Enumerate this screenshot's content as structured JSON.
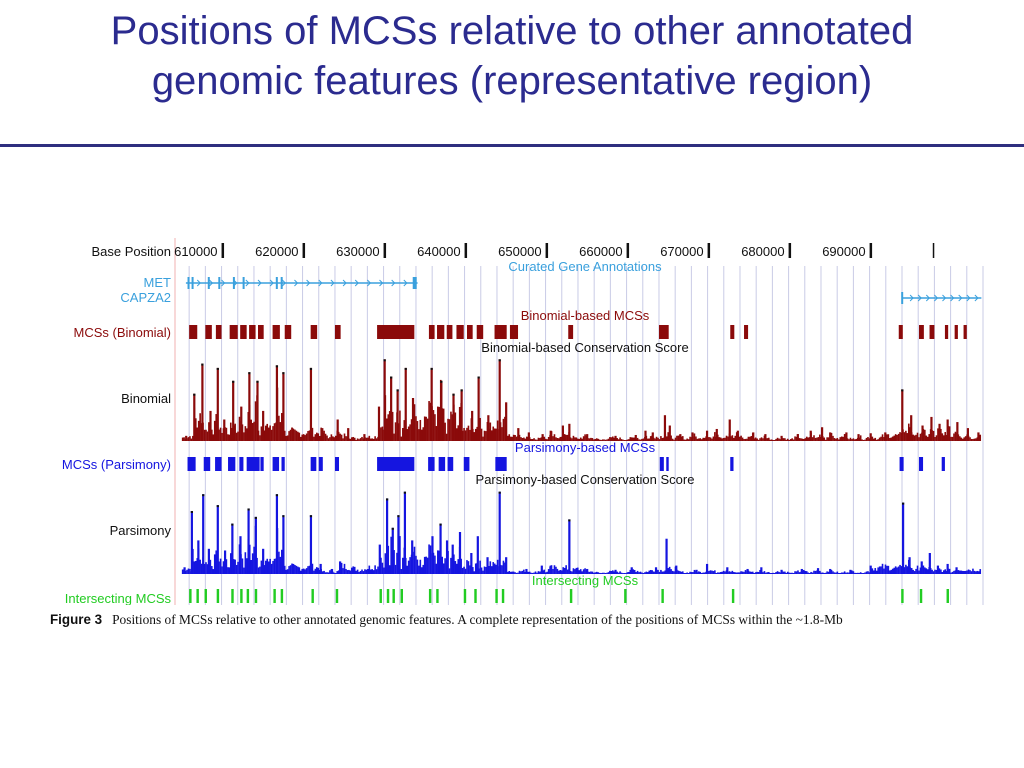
{
  "slide": {
    "title_line1": "Positions of MCSs relative to other annotated",
    "title_line2": "genomic features (representative region)"
  },
  "figure": {
    "caption_label": "Figure 3",
    "caption_text": "Positions of MCSs relative to other annotated genomic features. A complete representation of the positions of MCSs within the ~1.8-Mb",
    "colors": {
      "gene": "#3aa0dd",
      "binomial": "#8b0a0a",
      "parsimony": "#1515e0",
      "intersect": "#22cc22",
      "grid": "#c9cbe6"
    },
    "track_labels": {
      "base_position": "Base Position",
      "met": "MET",
      "capza2": "CAPZA2",
      "mcs_binomial": "MCSs (Binomial)",
      "binomial": "Binomial",
      "mcs_parsimony": "MCSs (Parsimony)",
      "parsimony": "Parsimony",
      "intersecting": "Intersecting MCSs"
    },
    "track_titles": {
      "curated": "Curated Gene Annotations",
      "binomial_mcs": "Binomial-based MCSs",
      "binomial_score": "Binomial-based Conservation Score",
      "parsimony_mcs": "Parsimony-based MCSs",
      "parsimony_score": "Parsimony-based Conservation Score",
      "intersecting_mcs": "Intersecting MCSs"
    },
    "axis": {
      "xlim": [
        604500,
        704000
      ],
      "ticks": [
        "610000",
        "620000",
        "630000",
        "640000",
        "650000",
        "660000",
        "670000",
        "680000",
        "690000"
      ]
    },
    "binomial_mcs_blocks": [
      [
        606000,
        607000
      ],
      [
        608000,
        608800
      ],
      [
        609300,
        610000
      ],
      [
        611000,
        612000
      ],
      [
        612300,
        613100
      ],
      [
        613400,
        614200
      ],
      [
        614500,
        615200
      ],
      [
        616300,
        617200
      ],
      [
        617800,
        618600
      ],
      [
        621000,
        621800
      ],
      [
        624000,
        624700
      ],
      [
        629200,
        633800
      ],
      [
        635600,
        636300
      ],
      [
        636600,
        637500
      ],
      [
        637800,
        638500
      ],
      [
        639000,
        639900
      ],
      [
        640300,
        641000
      ],
      [
        641500,
        642300
      ],
      [
        643700,
        645200
      ],
      [
        645600,
        646600
      ],
      [
        652800,
        653400
      ],
      [
        664000,
        665200
      ],
      [
        672800,
        673300
      ],
      [
        674500,
        675000
      ],
      [
        693600,
        694100
      ],
      [
        696100,
        696700
      ],
      [
        697400,
        698000
      ],
      [
        699300,
        699700
      ],
      [
        700500,
        700900
      ],
      [
        701600,
        702000
      ]
    ],
    "parsimony_mcs_blocks": [
      [
        605800,
        606800
      ],
      [
        607800,
        608600
      ],
      [
        609200,
        610000
      ],
      [
        610800,
        611700
      ],
      [
        612200,
        612700
      ],
      [
        613100,
        614700
      ],
      [
        614800,
        615200
      ],
      [
        616300,
        617100
      ],
      [
        617400,
        617800
      ],
      [
        621000,
        621700
      ],
      [
        622000,
        622500
      ],
      [
        624000,
        624500
      ],
      [
        629200,
        633800
      ],
      [
        635500,
        636300
      ],
      [
        636800,
        637600
      ],
      [
        637900,
        638600
      ],
      [
        639900,
        640600
      ],
      [
        643800,
        645200
      ],
      [
        664100,
        664600
      ],
      [
        664900,
        665200
      ],
      [
        672800,
        673200
      ],
      [
        693700,
        694200
      ],
      [
        696100,
        696600
      ],
      [
        698900,
        699300
      ]
    ],
    "intersecting_mcs_blocks": [
      [
        606000,
        606300
      ],
      [
        606900,
        607200
      ],
      [
        607900,
        608200
      ],
      [
        609400,
        609700
      ],
      [
        611200,
        611500
      ],
      [
        612300,
        612600
      ],
      [
        613100,
        613400
      ],
      [
        614100,
        614400
      ],
      [
        616400,
        616700
      ],
      [
        617300,
        617600
      ],
      [
        621100,
        621400
      ],
      [
        624100,
        624400
      ],
      [
        629500,
        629800
      ],
      [
        630400,
        630700
      ],
      [
        631100,
        631400
      ],
      [
        632100,
        632400
      ],
      [
        635600,
        635900
      ],
      [
        636500,
        636800
      ],
      [
        639900,
        640200
      ],
      [
        641200,
        641500
      ],
      [
        643800,
        644100
      ],
      [
        644600,
        644900
      ],
      [
        653000,
        653300
      ],
      [
        659700,
        660000
      ],
      [
        664300,
        664600
      ],
      [
        673000,
        673300
      ],
      [
        693900,
        694200
      ],
      [
        696200,
        696500
      ],
      [
        699500,
        699800
      ]
    ],
    "binomial_peaks": [
      [
        605500,
        6
      ],
      [
        606500,
        55
      ],
      [
        607500,
        90
      ],
      [
        608500,
        35
      ],
      [
        609400,
        85
      ],
      [
        610200,
        25
      ],
      [
        611300,
        70
      ],
      [
        612300,
        40
      ],
      [
        613300,
        80
      ],
      [
        614300,
        70
      ],
      [
        615000,
        35
      ],
      [
        616700,
        88
      ],
      [
        617500,
        80
      ],
      [
        618600,
        15
      ],
      [
        620900,
        85
      ],
      [
        622300,
        15
      ],
      [
        624200,
        25
      ],
      [
        625500,
        15
      ],
      [
        627500,
        8
      ],
      [
        629300,
        40
      ],
      [
        630000,
        95
      ],
      [
        630800,
        75
      ],
      [
        631600,
        60
      ],
      [
        632600,
        85
      ],
      [
        633500,
        50
      ],
      [
        635800,
        85
      ],
      [
        637000,
        70
      ],
      [
        638500,
        55
      ],
      [
        639500,
        60
      ],
      [
        640800,
        35
      ],
      [
        641600,
        75
      ],
      [
        642800,
        30
      ],
      [
        644200,
        95
      ],
      [
        645000,
        45
      ],
      [
        646500,
        15
      ],
      [
        647800,
        10
      ],
      [
        649500,
        8
      ],
      [
        650500,
        12
      ],
      [
        652000,
        18
      ],
      [
        652800,
        20
      ],
      [
        655000,
        8
      ],
      [
        658500,
        6
      ],
      [
        661000,
        7
      ],
      [
        662200,
        12
      ],
      [
        663100,
        10
      ],
      [
        664600,
        30
      ],
      [
        665200,
        18
      ],
      [
        666500,
        8
      ],
      [
        668000,
        10
      ],
      [
        669800,
        12
      ],
      [
        671000,
        14
      ],
      [
        672600,
        25
      ],
      [
        673600,
        12
      ],
      [
        675500,
        10
      ],
      [
        677000,
        8
      ],
      [
        679000,
        6
      ],
      [
        681000,
        8
      ],
      [
        682600,
        12
      ],
      [
        684000,
        16
      ],
      [
        685000,
        10
      ],
      [
        687000,
        10
      ],
      [
        688500,
        8
      ],
      [
        690000,
        9
      ],
      [
        691800,
        10
      ],
      [
        693900,
        60
      ],
      [
        695000,
        30
      ],
      [
        696400,
        18
      ],
      [
        697500,
        28
      ],
      [
        698500,
        20
      ],
      [
        699500,
        25
      ],
      [
        700700,
        22
      ],
      [
        702000,
        15
      ],
      [
        703300,
        10
      ]
    ],
    "parsimony_peaks": [
      [
        605300,
        8
      ],
      [
        606200,
        75
      ],
      [
        607000,
        40
      ],
      [
        607600,
        95
      ],
      [
        608300,
        30
      ],
      [
        609400,
        82
      ],
      [
        610300,
        28
      ],
      [
        611200,
        60
      ],
      [
        612200,
        45
      ],
      [
        613200,
        78
      ],
      [
        614100,
        68
      ],
      [
        615000,
        30
      ],
      [
        616700,
        95
      ],
      [
        617500,
        70
      ],
      [
        618700,
        12
      ],
      [
        620900,
        70
      ],
      [
        622100,
        12
      ],
      [
        623500,
        6
      ],
      [
        624500,
        15
      ],
      [
        629400,
        35
      ],
      [
        630300,
        90
      ],
      [
        631000,
        55
      ],
      [
        631700,
        70
      ],
      [
        632500,
        98
      ],
      [
        633400,
        40
      ],
      [
        635900,
        45
      ],
      [
        636900,
        60
      ],
      [
        637700,
        40
      ],
      [
        638400,
        35
      ],
      [
        639300,
        50
      ],
      [
        640700,
        25
      ],
      [
        641500,
        45
      ],
      [
        642700,
        20
      ],
      [
        644200,
        98
      ],
      [
        645000,
        20
      ],
      [
        647500,
        6
      ],
      [
        649400,
        10
      ],
      [
        650500,
        10
      ],
      [
        652800,
        65
      ],
      [
        655000,
        6
      ],
      [
        658500,
        5
      ],
      [
        660500,
        8
      ],
      [
        663500,
        8
      ],
      [
        664800,
        42
      ],
      [
        666000,
        10
      ],
      [
        668500,
        5
      ],
      [
        669800,
        12
      ],
      [
        672300,
        8
      ],
      [
        674800,
        6
      ],
      [
        676500,
        8
      ],
      [
        679000,
        5
      ],
      [
        681500,
        6
      ],
      [
        683500,
        7
      ],
      [
        685000,
        6
      ],
      [
        687500,
        5
      ],
      [
        690000,
        10
      ],
      [
        694000,
        85
      ],
      [
        694800,
        20
      ],
      [
        696300,
        15
      ],
      [
        697300,
        25
      ],
      [
        698300,
        10
      ],
      [
        699500,
        12
      ],
      [
        700600,
        8
      ]
    ]
  }
}
